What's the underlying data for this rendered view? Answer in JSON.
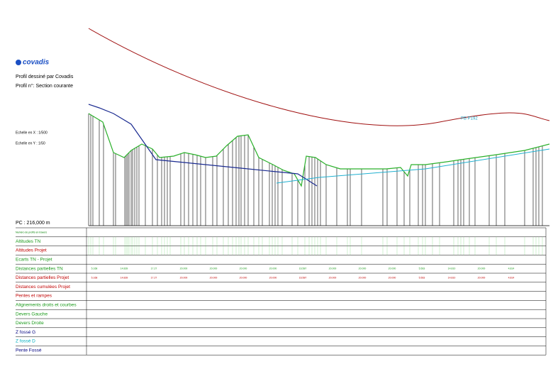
{
  "header": {
    "logo": "covadis",
    "title": "Profil dessiné par Covadis",
    "profile": "Profil n°: Section courante",
    "scale_x": "Echelle en X : 1/500",
    "scale_y": "Echelle en Y : 1/50",
    "pc": "PC : 216,000 m"
  },
  "drawing": {
    "label": "PB P192"
  },
  "table": {
    "rows": [
      {
        "label": "Numéro de profils en travers",
        "color": "#008000"
      },
      {
        "label": "Altitudes TN",
        "color": "#1a9a1a"
      },
      {
        "label": "Altitudes Projet",
        "color": "#c00000"
      },
      {
        "label": "Ecarts TN - Projet",
        "color": "#1a9a1a"
      },
      {
        "label": "Distances partielles TN",
        "color": "#1a9a1a",
        "values": [
          "5.168",
          "14.839",
          "17.27",
          "20.000",
          "20.000",
          "20.000",
          "20.000",
          "16.587",
          "20.000",
          "20.000",
          "20.000",
          "5.563",
          "14.810",
          "20.000",
          "4.814"
        ]
      },
      {
        "label": "Distances partielles Projet",
        "color": "#c00000",
        "values": [
          "5.168",
          "14.839",
          "17.27",
          "20.000",
          "20.000",
          "20.000",
          "20.000",
          "16.587",
          "20.000",
          "20.000",
          "20.000",
          "5.563",
          "14.810",
          "20.000",
          "4.814"
        ]
      },
      {
        "label": "Distances cumulées Projet",
        "color": "#c00000"
      },
      {
        "label": "Pentes et rampes",
        "color": "#c00000"
      },
      {
        "label": "Alignements droits et courbes",
        "color": "#1a9a1a"
      },
      {
        "label": "Devers Gauche",
        "color": "#1a9a1a"
      },
      {
        "label": "Devers Droite",
        "color": "#1a9a1a"
      },
      {
        "label": "Z fossé G",
        "color": "#000080"
      },
      {
        "label": "Z fossé D",
        "color": "#00b0c0"
      },
      {
        "label": "Pente Fossé",
        "color": "#000080"
      }
    ]
  }
}
